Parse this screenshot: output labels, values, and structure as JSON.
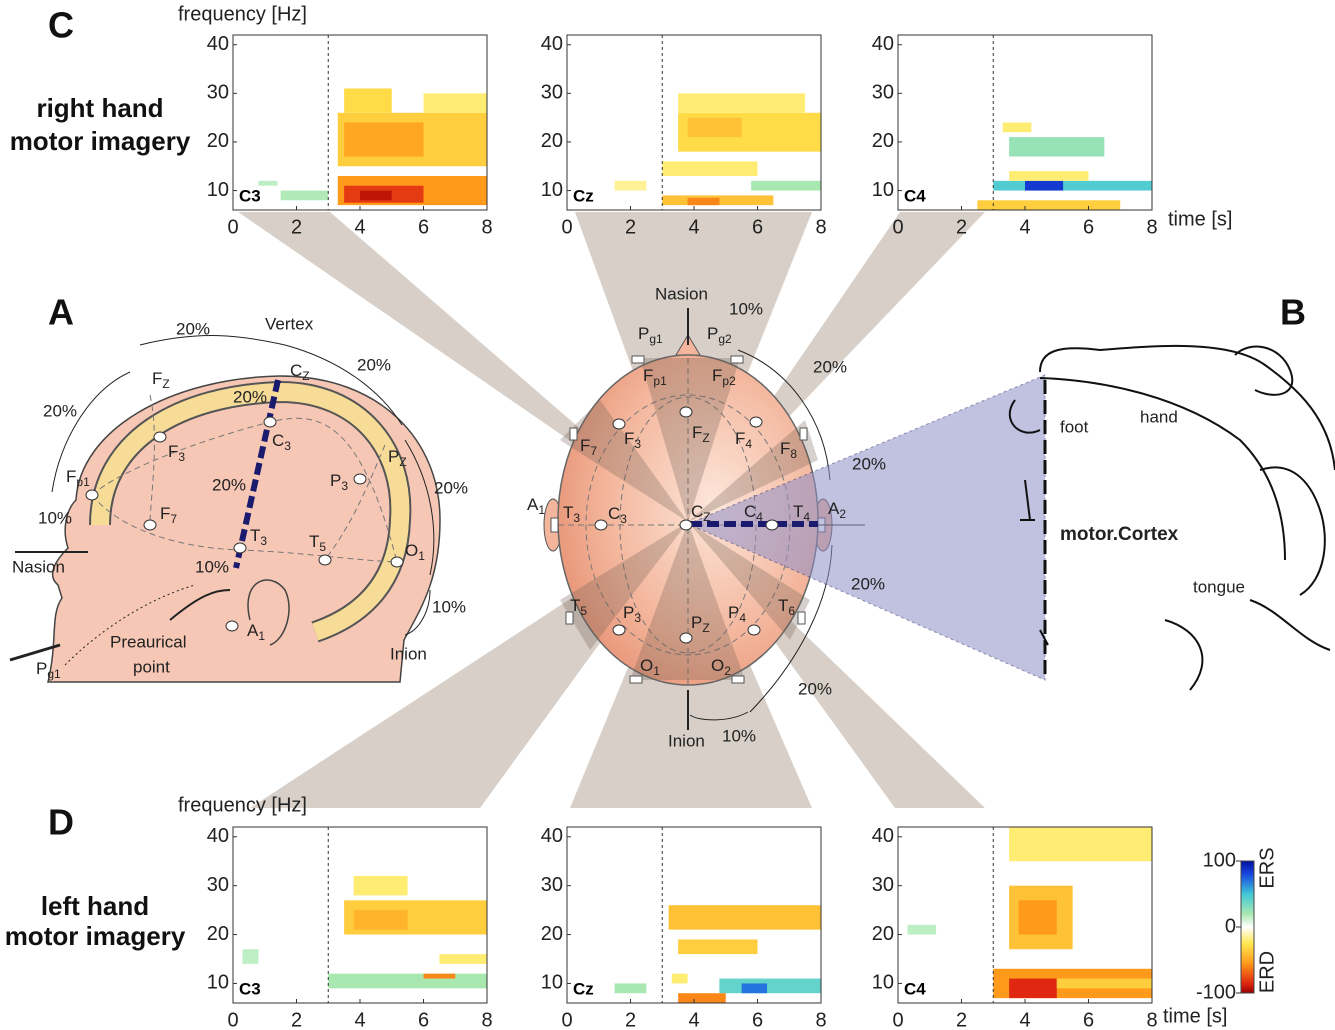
{
  "panel_c": {
    "label": "C",
    "row_title": [
      "right hand",
      "motor imagery"
    ],
    "y_axis_label": "frequency [Hz]",
    "x_axis_label": "time [s]",
    "xlim": [
      0,
      8
    ],
    "ylim": [
      6,
      42
    ],
    "xticks": [
      0,
      2,
      4,
      6,
      8
    ],
    "yticks": [
      10,
      20,
      30,
      40
    ],
    "cue_time": 3,
    "plots": [
      {
        "channel": "C3",
        "regions": [
          {
            "t": [
              3.3,
              8
            ],
            "f": [
              15,
              26
            ],
            "v": -35
          },
          {
            "t": [
              3.5,
              6
            ],
            "f": [
              17,
              24
            ],
            "v": -50
          },
          {
            "t": [
              3.5,
              5
            ],
            "f": [
              26,
              31
            ],
            "v": -30
          },
          {
            "t": [
              6,
              8
            ],
            "f": [
              26,
              30
            ],
            "v": -20
          },
          {
            "t": [
              3.3,
              8
            ],
            "f": [
              7,
              13
            ],
            "v": -55
          },
          {
            "t": [
              3.5,
              6
            ],
            "f": [
              7.5,
              11
            ],
            "v": -80
          },
          {
            "t": [
              4,
              5
            ],
            "f": [
              8,
              10
            ],
            "v": -92
          },
          {
            "t": [
              1.5,
              3
            ],
            "f": [
              8,
              10
            ],
            "v": 18
          },
          {
            "t": [
              0.8,
              1.4
            ],
            "f": [
              11,
              12
            ],
            "v": 15
          }
        ]
      },
      {
        "channel": "Cz",
        "regions": [
          {
            "t": [
              3.5,
              8
            ],
            "f": [
              18,
              26
            ],
            "v": -30
          },
          {
            "t": [
              3.8,
              5.5
            ],
            "f": [
              21,
              25
            ],
            "v": -40
          },
          {
            "t": [
              3.5,
              7.5
            ],
            "f": [
              26,
              30
            ],
            "v": -20
          },
          {
            "t": [
              3,
              6.5
            ],
            "f": [
              7,
              9
            ],
            "v": -40
          },
          {
            "t": [
              3.8,
              4.8
            ],
            "f": [
              7,
              8.5
            ],
            "v": -60
          },
          {
            "t": [
              5.8,
              8
            ],
            "f": [
              10,
              12
            ],
            "v": 20
          },
          {
            "t": [
              3,
              6
            ],
            "f": [
              13,
              16
            ],
            "v": -20
          },
          {
            "t": [
              1.5,
              2.5
            ],
            "f": [
              10,
              12
            ],
            "v": -15
          }
        ]
      },
      {
        "channel": "C4",
        "regions": [
          {
            "t": [
              3.5,
              6.5
            ],
            "f": [
              17,
              21
            ],
            "v": 25
          },
          {
            "t": [
              3,
              8
            ],
            "f": [
              10,
              12
            ],
            "v": 45
          },
          {
            "t": [
              4,
              5.2
            ],
            "f": [
              10,
              12
            ],
            "v": 85
          },
          {
            "t": [
              2.5,
              7
            ],
            "f": [
              6,
              8
            ],
            "v": -35
          },
          {
            "t": [
              3.5,
              6
            ],
            "f": [
              12,
              14
            ],
            "v": -20
          },
          {
            "t": [
              3.3,
              4.2
            ],
            "f": [
              22,
              24
            ],
            "v": -20
          }
        ]
      }
    ]
  },
  "panel_d": {
    "label": "D",
    "row_title": [
      "left hand",
      "motor imagery"
    ],
    "y_axis_label": "frequency [Hz]",
    "x_axis_label": "time [s]",
    "xlim": [
      0,
      8
    ],
    "ylim": [
      6,
      42
    ],
    "xticks": [
      0,
      2,
      4,
      6,
      8
    ],
    "yticks": [
      10,
      20,
      30,
      40
    ],
    "cue_time": 3,
    "plots": [
      {
        "channel": "C3",
        "regions": [
          {
            "t": [
              3.5,
              8
            ],
            "f": [
              20,
              27
            ],
            "v": -35
          },
          {
            "t": [
              3.8,
              5.5
            ],
            "f": [
              21,
              25
            ],
            "v": -45
          },
          {
            "t": [
              3.8,
              5.5
            ],
            "f": [
              28,
              32
            ],
            "v": -20
          },
          {
            "t": [
              3,
              8
            ],
            "f": [
              9,
              12
            ],
            "v": 20
          },
          {
            "t": [
              6,
              7
            ],
            "f": [
              11,
              12
            ],
            "v": -60
          },
          {
            "t": [
              6.5,
              8
            ],
            "f": [
              14,
              16
            ],
            "v": -20
          },
          {
            "t": [
              0.3,
              0.8
            ],
            "f": [
              14,
              17
            ],
            "v": 15
          }
        ]
      },
      {
        "channel": "Cz",
        "regions": [
          {
            "t": [
              3.2,
              8
            ],
            "f": [
              21,
              26
            ],
            "v": -40
          },
          {
            "t": [
              3.5,
              6
            ],
            "f": [
              16,
              19
            ],
            "v": -35
          },
          {
            "t": [
              4.8,
              8
            ],
            "f": [
              8,
              11
            ],
            "v": 40
          },
          {
            "t": [
              5.5,
              6.3
            ],
            "f": [
              8,
              10
            ],
            "v": 70
          },
          {
            "t": [
              3.5,
              5
            ],
            "f": [
              6,
              8
            ],
            "v": -60
          },
          {
            "t": [
              3.3,
              3.8
            ],
            "f": [
              10,
              12
            ],
            "v": -20
          },
          {
            "t": [
              1.5,
              2.5
            ],
            "f": [
              8,
              10
            ],
            "v": 20
          }
        ]
      },
      {
        "channel": "C4",
        "regions": [
          {
            "t": [
              3.5,
              5.5
            ],
            "f": [
              17,
              30
            ],
            "v": -40
          },
          {
            "t": [
              3.8,
              5
            ],
            "f": [
              20,
              27
            ],
            "v": -55
          },
          {
            "t": [
              3,
              8
            ],
            "f": [
              7,
              13
            ],
            "v": -55
          },
          {
            "t": [
              3.5,
              5
            ],
            "f": [
              7,
              11
            ],
            "v": -85
          },
          {
            "t": [
              5,
              8
            ],
            "f": [
              9,
              11
            ],
            "v": -35
          },
          {
            "t": [
              3.5,
              8
            ],
            "f": [
              35,
              42
            ],
            "v": -20
          },
          {
            "t": [
              0.3,
              1.2
            ],
            "f": [
              20,
              22
            ],
            "v": 15
          }
        ]
      }
    ]
  },
  "colorbar": {
    "ylim": [
      -100,
      100
    ],
    "ticks": [
      100,
      0,
      -100
    ],
    "labels": [
      "ERS",
      "ERD"
    ],
    "colormap": [
      {
        "value": -100,
        "color": "#9a0000"
      },
      {
        "value": -85,
        "color": "#e02810"
      },
      {
        "value": -55,
        "color": "#ff9a1a"
      },
      {
        "value": -25,
        "color": "#ffe850"
      },
      {
        "value": 0,
        "color": "#ffffff"
      },
      {
        "value": 20,
        "color": "#a8e8b0"
      },
      {
        "value": 50,
        "color": "#40c8d8"
      },
      {
        "value": 80,
        "color": "#1848e0"
      },
      {
        "value": 100,
        "color": "#0010a0"
      }
    ]
  },
  "panel_a": {
    "label": "A",
    "texts": [
      "Vertex",
      "Nasion",
      "Inion",
      "Preaurical",
      "point"
    ],
    "percents": [
      "20%",
      "20%",
      "20%",
      "20%",
      "20%",
      "20%",
      "10%",
      "10%",
      "10%"
    ],
    "electrodes": [
      {
        "name": "F",
        "sub": "Z"
      },
      {
        "name": "C",
        "sub": "Z"
      },
      {
        "name": "F",
        "sub": "p1"
      },
      {
        "name": "F",
        "sub": "3"
      },
      {
        "name": "F",
        "sub": "7"
      },
      {
        "name": "C",
        "sub": "3"
      },
      {
        "name": "T",
        "sub": "3"
      },
      {
        "name": "T",
        "sub": "5"
      },
      {
        "name": "P",
        "sub": "3"
      },
      {
        "name": "P",
        "sub": "Z"
      },
      {
        "name": "O",
        "sub": "1"
      },
      {
        "name": "A",
        "sub": "1"
      },
      {
        "name": "P",
        "sub": "g1"
      }
    ]
  },
  "scalp": {
    "texts": [
      "Nasion",
      "Inion"
    ],
    "percents": [
      "10%",
      "20%",
      "20%",
      "20%",
      "20%",
      "10%"
    ],
    "electrodes": [
      {
        "name": "P",
        "sub": "g1"
      },
      {
        "name": "P",
        "sub": "g2"
      },
      {
        "name": "F",
        "sub": "p1"
      },
      {
        "name": "F",
        "sub": "p2"
      },
      {
        "name": "F",
        "sub": "7"
      },
      {
        "name": "F",
        "sub": "3"
      },
      {
        "name": "F",
        "sub": "Z"
      },
      {
        "name": "F",
        "sub": "4"
      },
      {
        "name": "F",
        "sub": "8"
      },
      {
        "name": "A",
        "sub": "1"
      },
      {
        "name": "T",
        "sub": "3"
      },
      {
        "name": "C",
        "sub": "3"
      },
      {
        "name": "C",
        "sub": "Z"
      },
      {
        "name": "C",
        "sub": "4"
      },
      {
        "name": "T",
        "sub": "4"
      },
      {
        "name": "A",
        "sub": "2"
      },
      {
        "name": "T",
        "sub": "5"
      },
      {
        "name": "P",
        "sub": "3"
      },
      {
        "name": "P",
        "sub": "Z"
      },
      {
        "name": "P",
        "sub": "4"
      },
      {
        "name": "T",
        "sub": "6"
      },
      {
        "name": "O",
        "sub": "1"
      },
      {
        "name": "O",
        "sub": "2"
      }
    ]
  },
  "panel_b": {
    "label": "B",
    "texts": [
      "foot",
      "hand",
      "motor.Cortex",
      "tongue"
    ]
  }
}
